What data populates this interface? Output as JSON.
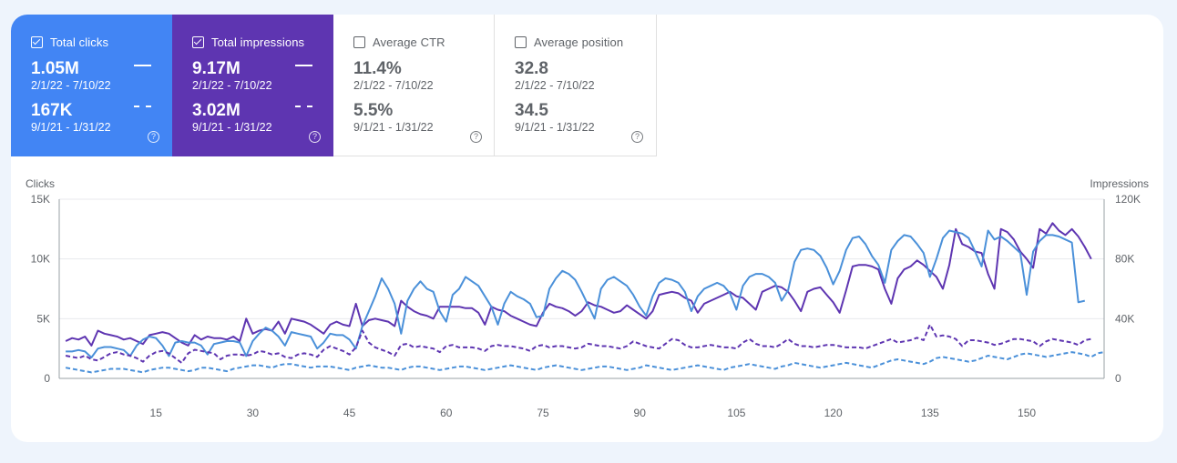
{
  "metrics": {
    "clicks": {
      "label": "Total clicks",
      "checked": true,
      "current": "1.05M",
      "current_range": "2/1/22 - 7/10/22",
      "previous": "167K",
      "previous_range": "9/1/21 - 1/31/22",
      "color": "#4285f4"
    },
    "impressions": {
      "label": "Total impressions",
      "checked": true,
      "current": "9.17M",
      "current_range": "2/1/22 - 7/10/22",
      "previous": "3.02M",
      "previous_range": "9/1/21 - 1/31/22",
      "color": "#5e35b1"
    },
    "ctr": {
      "label": "Average CTR",
      "checked": false,
      "current": "11.4%",
      "current_range": "2/1/22 - 7/10/22",
      "previous": "5.5%",
      "previous_range": "9/1/21 - 1/31/22"
    },
    "position": {
      "label": "Average position",
      "checked": false,
      "current": "32.8",
      "current_range": "2/1/22 - 7/10/22",
      "previous": "34.5",
      "previous_range": "9/1/21 - 1/31/22"
    }
  },
  "help_glyph": "?",
  "chart_data": {
    "type": "line",
    "ylabel": "Clicks",
    "y2label": "Impressions",
    "y_ticks": [
      "0",
      "5K",
      "10K",
      "15K"
    ],
    "y2_ticks": [
      "0",
      "40K",
      "80K",
      "120K"
    ],
    "x_ticks": [
      "15",
      "30",
      "45",
      "60",
      "75",
      "90",
      "105",
      "120",
      "135",
      "150"
    ],
    "x_tick_values": [
      15,
      30,
      45,
      60,
      75,
      90,
      105,
      120,
      135,
      150
    ],
    "xlim": [
      0,
      162
    ],
    "ylim": [
      0,
      15000
    ],
    "y2lim": [
      0,
      120000
    ],
    "grid": true,
    "series": [
      {
        "axis": "right",
        "style": "solid",
        "color": "#5e35b1",
        "x_start": 1,
        "values": [
          25000,
          27000,
          26000,
          28000,
          22000,
          32000,
          30000,
          29000,
          28000,
          26000,
          27000,
          25000,
          23000,
          29000,
          30000,
          31000,
          30000,
          27000,
          24000,
          22000,
          29000,
          26000,
          28000,
          27000,
          27000,
          26000,
          28000,
          25000,
          40000,
          30000,
          32000,
          33000,
          32000,
          38000,
          30000,
          40000,
          39000,
          38000,
          36000,
          33000,
          30000,
          36000,
          38000,
          36000,
          35000,
          50000,
          35000,
          39000,
          40000,
          39000,
          38000,
          35000,
          52000,
          48000,
          45000,
          43000,
          42000,
          40000,
          48000,
          48000,
          48000,
          48000,
          47000,
          47000,
          44000,
          36000,
          48000,
          46000,
          45000,
          42000,
          40000,
          38000,
          36000,
          35000,
          44000,
          50000,
          48000,
          47000,
          45000,
          42000,
          45000,
          51000,
          49000,
          48000,
          46000,
          44000,
          45000,
          49000,
          46000,
          43000,
          40000,
          45000,
          56000,
          57000,
          58000,
          57000,
          54000,
          52000,
          44000,
          50000,
          52000,
          54000,
          56000,
          58000,
          55000,
          54000,
          50000,
          46000,
          58000,
          60000,
          62000,
          61000,
          58000,
          52000,
          45000,
          58000,
          60000,
          61000,
          56000,
          51000,
          44000,
          59000,
          75000,
          76000,
          76000,
          75000,
          73000,
          60000,
          50000,
          67000,
          73000,
          75000,
          79000,
          76000,
          72000,
          68000,
          60000,
          76000,
          100000,
          90000,
          88000,
          85000,
          84000,
          70000,
          60000,
          100000,
          98000,
          93000,
          85000,
          80000,
          74000,
          100000,
          97000,
          104000,
          99000,
          96000,
          100000,
          95000,
          88000,
          80000
        ],
        "source_note": "visible series ends near x=161"
      },
      {
        "axis": "right",
        "style": "solid",
        "color": "#4a90d9",
        "x_start": 1,
        "values": [
          18000,
          18000,
          19000,
          18000,
          14000,
          20000,
          21000,
          21000,
          20000,
          19000,
          15000,
          22000,
          26000,
          28000,
          27000,
          22000,
          15000,
          24000,
          25000,
          24000,
          24000,
          22000,
          16000,
          23000,
          24000,
          25000,
          25000,
          24000,
          15000,
          25000,
          30000,
          34000,
          32000,
          28000,
          22000,
          31000,
          30000,
          29000,
          28000,
          20000,
          24000,
          30000,
          29000,
          29000,
          26000,
          20000,
          35000,
          45000,
          55000,
          67000,
          60000,
          50000,
          30000,
          52000,
          60000,
          65000,
          60000,
          58000,
          45000,
          38000,
          56000,
          60000,
          68000,
          65000,
          62000,
          55000,
          48000,
          36000,
          50000,
          58000,
          55000,
          53000,
          50000,
          41000,
          42000,
          60000,
          67000,
          72000,
          70000,
          66000,
          58000,
          49000,
          40000,
          60000,
          66000,
          68000,
          65000,
          62000,
          56000,
          48000,
          42000,
          55000,
          64000,
          67000,
          66000,
          64000,
          58000,
          45000,
          55000,
          60000,
          62000,
          64000,
          62000,
          57000,
          46000,
          62000,
          68000,
          70000,
          70000,
          68000,
          64000,
          52000,
          59000,
          78000,
          86000,
          87000,
          86000,
          82000,
          74000,
          63000,
          72000,
          86000,
          94000,
          95000,
          90000,
          82000,
          76000,
          64000,
          86000,
          92000,
          96000,
          95000,
          90000,
          84000,
          68000,
          80000,
          94000,
          99000,
          98000,
          97000,
          94000,
          85000,
          75000,
          99000,
          93000,
          95000,
          92000,
          88000,
          84000,
          56000,
          85000,
          92000,
          96000,
          96000,
          95000,
          93000,
          91000,
          51000,
          52000
        ],
        "source_note": "visible series ends near x=161"
      },
      {
        "axis": "left",
        "style": "dashed",
        "color": "#5e35b1",
        "x_start": 1,
        "values": [
          1900,
          1800,
          1700,
          1900,
          1600,
          1500,
          1800,
          2100,
          2200,
          2000,
          1900,
          1700,
          1400,
          1900,
          2200,
          2300,
          2100,
          1700,
          1300,
          2100,
          2400,
          2300,
          2200,
          2100,
          1600,
          1900,
          2000,
          2000,
          1900,
          2000,
          2300,
          2200,
          2000,
          2100,
          1800,
          1700,
          2000,
          2100,
          2000,
          1800,
          2400,
          2700,
          2500,
          2300,
          2000,
          2600,
          4000,
          3000,
          2600,
          2400,
          2200,
          1900,
          2800,
          2900,
          2600,
          2700,
          2600,
          2500,
          2200,
          2700,
          2800,
          2600,
          2600,
          2600,
          2500,
          2300,
          2700,
          2800,
          2700,
          2700,
          2600,
          2500,
          2300,
          2700,
          2800,
          2600,
          2700,
          2700,
          2600,
          2500,
          2600,
          2900,
          2800,
          2700,
          2700,
          2600,
          2500,
          2700,
          3100,
          2900,
          2700,
          2600,
          2500,
          2900,
          3300,
          3200,
          2800,
          2600,
          2600,
          2700,
          2800,
          2700,
          2600,
          2600,
          2500,
          3000,
          3300,
          2900,
          2700,
          2700,
          2600,
          2900,
          3300,
          2900,
          2700,
          2700,
          2600,
          2700,
          2800,
          2800,
          2700,
          2600,
          2600,
          2600,
          2500,
          2700,
          2900,
          3100,
          3300,
          3000,
          3100,
          3200,
          3400,
          3200,
          4500,
          3500,
          3600,
          3500,
          3300,
          2700,
          3200,
          3200,
          3100,
          3000,
          2800,
          2900,
          3100,
          3300,
          3300,
          3200,
          3100,
          2700,
          3100,
          3300,
          3200,
          3100,
          3000,
          2800,
          3200,
          3300
        ],
        "source_note": "dashed previous-period clicks, ends near x=154"
      },
      {
        "axis": "left",
        "style": "dashed",
        "color": "#4a90d9",
        "x_start": 1,
        "values": [
          900,
          800,
          700,
          600,
          500,
          600,
          700,
          800,
          800,
          800,
          700,
          600,
          500,
          700,
          800,
          900,
          900,
          800,
          700,
          600,
          700,
          900,
          900,
          800,
          700,
          600,
          800,
          900,
          1000,
          1100,
          1100,
          1000,
          900,
          1100,
          1200,
          1200,
          1100,
          1000,
          900,
          1000,
          1000,
          1000,
          900,
          800,
          700,
          900,
          1000,
          1100,
          1000,
          900,
          900,
          800,
          700,
          900,
          1000,
          1000,
          900,
          800,
          700,
          800,
          900,
          1000,
          1000,
          900,
          800,
          700,
          800,
          900,
          1000,
          1100,
          1000,
          900,
          800,
          700,
          900,
          1000,
          1100,
          1000,
          900,
          800,
          700,
          800,
          900,
          1000,
          1000,
          900,
          800,
          700,
          800,
          900,
          1100,
          1000,
          900,
          800,
          700,
          800,
          900,
          1000,
          1100,
          1000,
          900,
          800,
          700,
          900,
          1000,
          1100,
          1200,
          1100,
          1000,
          900,
          800,
          1000,
          1100,
          1300,
          1200,
          1100,
          1000,
          900,
          1000,
          1100,
          1200,
          1300,
          1200,
          1100,
          1000,
          900,
          1100,
          1300,
          1500,
          1600,
          1500,
          1400,
          1300,
          1200,
          1400,
          1700,
          1800,
          1700,
          1600,
          1500,
          1400,
          1500,
          1700,
          1900,
          1800,
          1700,
          1600,
          1800,
          2000,
          2100,
          2000,
          1900,
          1800,
          1900,
          2000,
          2100,
          2200,
          2100,
          2000,
          1800,
          2100,
          2200
        ],
        "source_note": "dashed previous-period impressions"
      }
    ]
  }
}
